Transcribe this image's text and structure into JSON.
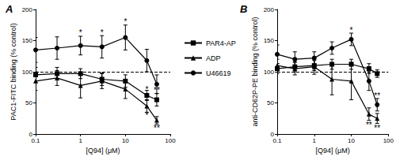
{
  "chart_data": [
    {
      "type": "line",
      "title": "A",
      "x_label": "[Q94] (μM)",
      "y_label": "PAC1-FITC binding (% control)",
      "log": "x",
      "xlim": [
        0.1,
        100
      ],
      "xticks": [
        0.1,
        1,
        10,
        100
      ],
      "ylim": [
        0,
        200
      ],
      "yticks": [
        0,
        50,
        100,
        150,
        200
      ],
      "hline": 100,
      "legend": "right",
      "x": [
        0.1,
        0.3,
        1,
        3,
        10,
        30,
        50
      ],
      "series": [
        {
          "name": "PAR4-AP",
          "color": "#000000",
          "marker": "square",
          "values": [
            95,
            97,
            97,
            88,
            85,
            62,
            55
          ],
          "errors": [
            12,
            10,
            8,
            10,
            10,
            8,
            10
          ]
        },
        {
          "name": "ADP",
          "color": "#000000",
          "marker": "triangle",
          "values": [
            85,
            90,
            78,
            85,
            72,
            45,
            22
          ],
          "errors": [
            15,
            12,
            20,
            12,
            15,
            10,
            6
          ]
        },
        {
          "name": "U46619",
          "color": "#000000",
          "marker": "circle",
          "values": [
            135,
            138,
            142,
            140,
            155,
            118,
            80
          ],
          "errors": [
            20,
            18,
            15,
            18,
            20,
            18,
            15
          ]
        }
      ],
      "annotations": [
        {
          "x": 1,
          "y": 163,
          "text": "*"
        },
        {
          "x": 3,
          "y": 163,
          "text": "*"
        },
        {
          "x": 10,
          "y": 180,
          "text": "*"
        },
        {
          "x": 30,
          "y": 72,
          "text": "*"
        },
        {
          "x": 50,
          "y": 70,
          "text": "**"
        },
        {
          "x": 30,
          "y": 30,
          "text": "*"
        },
        {
          "x": 50,
          "y": 10,
          "text": "**"
        }
      ]
    },
    {
      "type": "line",
      "title": "B",
      "x_label": "[Q94] (μM)",
      "y_label": "anti-CD62P-PE binding (% control)",
      "log": "x",
      "xlim": [
        0.1,
        100
      ],
      "xticks": [
        0.1,
        1,
        10,
        100
      ],
      "ylim": [
        0,
        200
      ],
      "yticks": [
        0,
        50,
        100,
        150,
        200
      ],
      "hline": 100,
      "x": [
        0.1,
        0.3,
        1,
        3,
        10,
        30,
        50
      ],
      "series": [
        {
          "name": "PAR4-AP",
          "color": "#000000",
          "marker": "square",
          "values": [
            105,
            108,
            110,
            112,
            112,
            105,
            97
          ],
          "errors": [
            8,
            8,
            8,
            8,
            8,
            8,
            6
          ]
        },
        {
          "name": "ADP",
          "color": "#000000",
          "marker": "triangle",
          "values": [
            110,
            105,
            108,
            88,
            85,
            32,
            25
          ],
          "errors": [
            10,
            10,
            12,
            25,
            30,
            10,
            8
          ]
        },
        {
          "name": "U46619",
          "color": "#000000",
          "marker": "circle",
          "values": [
            128,
            120,
            122,
            138,
            152,
            85,
            47
          ],
          "errors": [
            15,
            12,
            10,
            10,
            10,
            15,
            10
          ]
        }
      ],
      "annotations": [
        {
          "x": 10,
          "y": 167,
          "text": "*"
        },
        {
          "x": 50,
          "y": 62,
          "text": "**"
        },
        {
          "x": 30,
          "y": 15,
          "text": "**"
        },
        {
          "x": 50,
          "y": 10,
          "text": "**"
        }
      ]
    }
  ]
}
